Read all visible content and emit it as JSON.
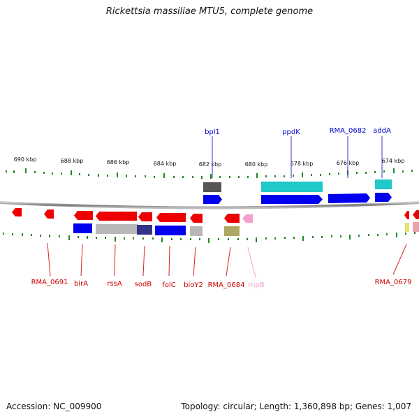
{
  "title": "Rickettsia massiliae MTU5, complete genome",
  "footer": {
    "accession": "Accession: NC_009900",
    "stats": "Topology: circular; Length: 1,360,898 bp; Genes: 1,007"
  },
  "ruler": [
    "690 kbp",
    "688 kbp",
    "686 kbp",
    "684 kbp",
    "682 kbp",
    "680 kbp",
    "678 kbp",
    "676 kbp",
    "674 kbp"
  ],
  "top_labels": [
    "bpl1",
    "ppdK",
    "RMA_0682",
    "addA"
  ],
  "bottom_labels": [
    "RMA_0691",
    "birA",
    "rssA",
    "sodB",
    "folC",
    "bioY2",
    "RMA_0684",
    "rnpB",
    "RMA_0679"
  ],
  "colors": {
    "forward_cds": "#0000ee",
    "reverse_cds": "#ee0000",
    "cog_gray": "#b8b8b8",
    "cog_dark": "#555555",
    "cog_cyan": "#20c8c8",
    "cog_navy": "#333388",
    "cog_olive": "#b0a860",
    "cog_yellow": "#e8e070",
    "cog_pink": "#f0a0a8",
    "rna": "#f7a0d0",
    "tick": "#228822",
    "backbone": "#888888"
  }
}
